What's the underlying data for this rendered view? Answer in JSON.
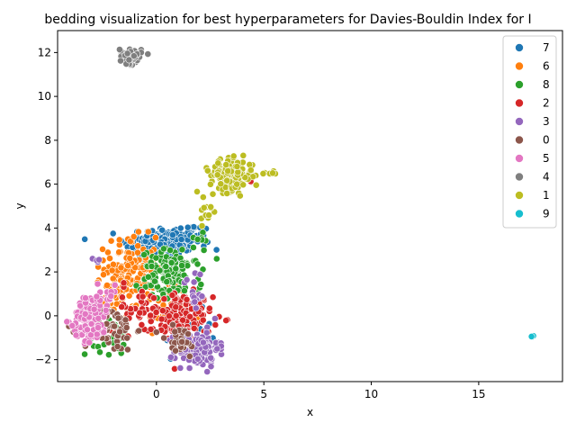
{
  "chart_data": {
    "type": "scatter",
    "title": "bedding visualization for best hyperparameters for Davies-Bouldin Index for I",
    "xlabel": "x",
    "ylabel": "y",
    "xlim": [
      -4.6,
      18.9
    ],
    "ylim": [
      -3.0,
      13.0
    ],
    "xticks": [
      0,
      5,
      10,
      15
    ],
    "yticks": [
      -2,
      0,
      2,
      4,
      6,
      8,
      10,
      12
    ],
    "grid": false,
    "legend_position": "top-right",
    "series": [
      {
        "name": "7",
        "color": "#1f77b4",
        "clusters": [
          {
            "cx": 0.3,
            "cy": 3.3,
            "sx": 0.9,
            "sy": 0.4,
            "n": 160
          },
          {
            "cx": 1.5,
            "cy": 3.6,
            "sx": 0.5,
            "sy": 0.3,
            "n": 40
          },
          {
            "cx": 1.6,
            "cy": -0.8,
            "sx": 0.6,
            "sy": 0.5,
            "n": 30
          }
        ]
      },
      {
        "name": "6",
        "color": "#ff7f0e",
        "clusters": [
          {
            "cx": -1.2,
            "cy": 2.2,
            "sx": 0.6,
            "sy": 0.7,
            "n": 120
          },
          {
            "cx": -2.0,
            "cy": 0.8,
            "sx": 0.5,
            "sy": 0.5,
            "n": 40
          },
          {
            "cx": 0.3,
            "cy": 0.6,
            "sx": 0.6,
            "sy": 0.6,
            "n": 40
          }
        ]
      },
      {
        "name": "8",
        "color": "#2ca02c",
        "clusters": [
          {
            "cx": 0.7,
            "cy": 1.8,
            "sx": 0.7,
            "sy": 0.6,
            "n": 130
          },
          {
            "cx": -2.3,
            "cy": -1.0,
            "sx": 0.5,
            "sy": 0.4,
            "n": 30
          },
          {
            "cx": 2.0,
            "cy": 3.5,
            "sx": 0.2,
            "sy": 0.2,
            "n": 6
          }
        ]
      },
      {
        "name": "2",
        "color": "#d62728",
        "clusters": [
          {
            "cx": 1.2,
            "cy": -0.1,
            "sx": 0.7,
            "sy": 0.6,
            "n": 140
          },
          {
            "cx": -0.9,
            "cy": 0.3,
            "sx": 0.6,
            "sy": 0.5,
            "n": 40
          },
          {
            "cx": 4.4,
            "cy": 6.1,
            "sx": 0.05,
            "sy": 0.05,
            "n": 2
          }
        ]
      },
      {
        "name": "3",
        "color": "#9467bd",
        "clusters": [
          {
            "cx": 1.9,
            "cy": -1.5,
            "sx": 0.5,
            "sy": 0.4,
            "n": 150
          },
          {
            "cx": -2.8,
            "cy": 2.6,
            "sx": 0.1,
            "sy": 0.1,
            "n": 4
          },
          {
            "cx": 1.8,
            "cy": 1.2,
            "sx": 0.3,
            "sy": 0.5,
            "n": 15
          }
        ]
      },
      {
        "name": "0",
        "color": "#8c564b",
        "clusters": [
          {
            "cx": -2.2,
            "cy": -0.6,
            "sx": 0.6,
            "sy": 0.5,
            "n": 70
          },
          {
            "cx": 1.0,
            "cy": -1.2,
            "sx": 0.5,
            "sy": 0.4,
            "n": 30
          }
        ]
      },
      {
        "name": "5",
        "color": "#e377c2",
        "clusters": [
          {
            "cx": -3.1,
            "cy": -0.2,
            "sx": 0.4,
            "sy": 0.5,
            "n": 120
          },
          {
            "cx": -2.5,
            "cy": 0.8,
            "sx": 0.4,
            "sy": 0.3,
            "n": 25
          }
        ]
      },
      {
        "name": "4",
        "color": "#7f7f7f",
        "clusters": [
          {
            "cx": -1.2,
            "cy": 11.85,
            "sx": 0.25,
            "sy": 0.18,
            "n": 60
          }
        ]
      },
      {
        "name": "1",
        "color": "#bcbd22",
        "clusters": [
          {
            "cx": 3.5,
            "cy": 6.4,
            "sx": 0.5,
            "sy": 0.35,
            "n": 170
          },
          {
            "cx": 5.3,
            "cy": 6.5,
            "sx": 0.2,
            "sy": 0.05,
            "n": 8
          },
          {
            "cx": 2.4,
            "cy": 4.8,
            "sx": 0.2,
            "sy": 0.4,
            "n": 12
          }
        ]
      },
      {
        "name": "9",
        "color": "#17becf",
        "clusters": [
          {
            "cx": 17.5,
            "cy": -0.95,
            "sx": 0.03,
            "sy": 0.03,
            "n": 3
          }
        ]
      }
    ]
  }
}
